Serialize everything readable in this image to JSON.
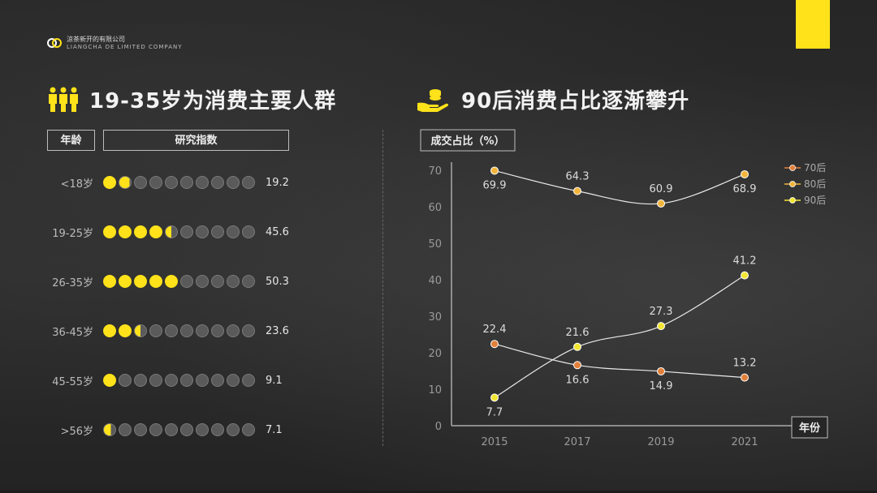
{
  "company": {
    "name_cn": "涼茶新开的有限公司",
    "name_en": "LIANGCHA DE LIMITED COMPANY"
  },
  "left_panel": {
    "title": "19-35岁为消费主要人群",
    "col_age": "年龄",
    "col_index": "研究指数",
    "rows": [
      {
        "age": "<18岁",
        "value": "19.2",
        "filled": 1.9
      },
      {
        "age": "19-25岁",
        "value": "45.6",
        "filled": 4.5
      },
      {
        "age": "26-35岁",
        "value": "50.3",
        "filled": 5.0
      },
      {
        "age": "36-45岁",
        "value": "23.6",
        "filled": 2.5
      },
      {
        "age": "45-55岁",
        "value": "9.1",
        "filled": 1.0
      },
      {
        "age": ">56岁",
        "value": "7.1",
        "filled": 0.6
      }
    ]
  },
  "right_panel": {
    "title": "90后消费占比逐渐攀升"
  },
  "colors": {
    "accent": "#ffe21a",
    "series_70": "#e2803a",
    "series_80": "#f2b53c",
    "series_90": "#f2e634",
    "dot_empty": "#5a5a5a"
  },
  "chart_data": {
    "type": "line",
    "ylabel": "成交占比（%）",
    "xlabel": "年份",
    "x": [
      "2015",
      "2017",
      "2019",
      "2021"
    ],
    "ylim": [
      0,
      70
    ],
    "yticks": [
      0,
      10,
      20,
      30,
      40,
      50,
      60,
      70
    ],
    "grid": false,
    "legend": "top-right",
    "series": [
      {
        "name": "70后",
        "values": [
          22.4,
          16.6,
          14.9,
          13.2
        ],
        "color": "#e2803a"
      },
      {
        "name": "80后",
        "values": [
          69.9,
          64.3,
          60.9,
          68.9
        ],
        "color": "#f2b53c"
      },
      {
        "name": "90后",
        "values": [
          7.7,
          21.6,
          27.3,
          41.2
        ],
        "color": "#f2e634"
      }
    ]
  }
}
